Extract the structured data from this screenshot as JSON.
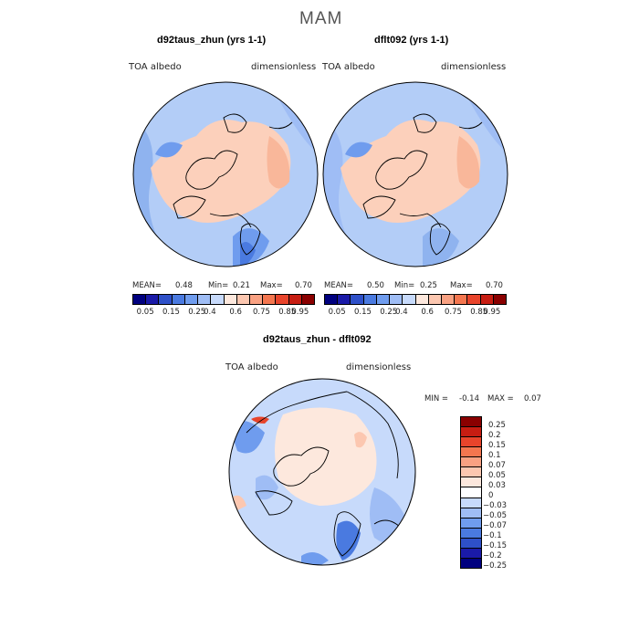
{
  "figure_title": "MAM",
  "panels": [
    {
      "title": "d92taus_zhun (yrs 1-1)",
      "left_label": "TOA albedo",
      "right_label": "dimensionless",
      "mean_label": "MEAN=",
      "mean": "0.48",
      "min_label": "Min=",
      "min": "0.21",
      "max_label": "Max=",
      "max": "0.70"
    },
    {
      "title": "dflt092 (yrs 1-1)",
      "left_label": "TOA albedo",
      "right_label": "dimensionless",
      "mean_label": "MEAN=",
      "mean": "0.50",
      "min_label": "Min=",
      "min": "0.25",
      "max_label": "Max=",
      "max": "0.70"
    }
  ],
  "diff_panel": {
    "title": "d92taus_zhun - dflt092",
    "left_label": "TOA albedo",
    "right_label": "dimensionless",
    "min_label": "MIN =",
    "min": "-0.14",
    "max_label": "MAX =",
    "max": "0.07"
  },
  "colorbar_top": {
    "colors": [
      "#00007f",
      "#1a1aa8",
      "#2e50c8",
      "#4a7ae0",
      "#6f9cee",
      "#9fbdf5",
      "#c7dafb",
      "#fde8dd",
      "#fcc7b0",
      "#f9a182",
      "#f4764f",
      "#e8442b",
      "#c71d12",
      "#8a0000"
    ],
    "ticks": [
      "0.05",
      "0.15",
      "0.25",
      "0.4",
      "0.6",
      "0.75",
      "0.85",
      "0.95"
    ]
  },
  "colorbar_diff": {
    "colors": [
      "#8a0000",
      "#c71d12",
      "#e8442b",
      "#f4764f",
      "#f9a182",
      "#fcc7b0",
      "#fde8dd",
      "#ffffff",
      "#c7dafb",
      "#9fbdf5",
      "#6f9cee",
      "#4a7ae0",
      "#2e50c8",
      "#1a1aa8",
      "#00007f"
    ],
    "ticks": [
      "0.25",
      "0.2",
      "0.15",
      "0.1",
      "0.07",
      "0.05",
      "0.03",
      "0",
      "−0.03",
      "−0.05",
      "−0.07",
      "−0.1",
      "−0.15",
      "−0.2",
      "−0.25"
    ]
  }
}
